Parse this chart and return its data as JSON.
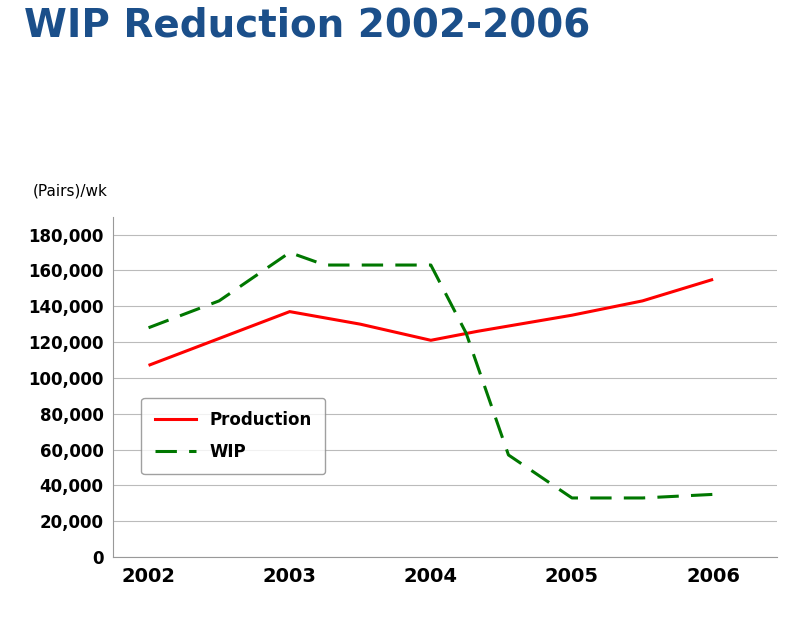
{
  "title": "WIP Reduction 2002-2006",
  "title_color": "#1B4F8A",
  "ylabel": "(Pairs)/wk",
  "production_x": [
    2002,
    2002.5,
    2003,
    2003.5,
    2004,
    2004.33,
    2005,
    2005.5,
    2006
  ],
  "production_y": [
    107000,
    122000,
    137000,
    130000,
    121000,
    126000,
    135000,
    143000,
    155000
  ],
  "wip_x": [
    2002,
    2002.5,
    2003,
    2003.25,
    2004,
    2004.25,
    2004.55,
    2005,
    2005.5,
    2006
  ],
  "wip_y": [
    128000,
    143000,
    170000,
    163000,
    163000,
    125000,
    57000,
    33000,
    33000,
    35000
  ],
  "production_color": "#FF0000",
  "wip_color": "#007700",
  "ylim": [
    0,
    190000
  ],
  "yticks": [
    0,
    20000,
    40000,
    60000,
    80000,
    100000,
    120000,
    140000,
    160000,
    180000
  ],
  "xlim": [
    2001.75,
    2006.45
  ],
  "xticks": [
    2002,
    2003,
    2004,
    2005,
    2006
  ],
  "background_color": "#FFFFFF",
  "grid_color": "#BBBBBB",
  "title_fontsize": 28,
  "ylabel_fontsize": 11,
  "tick_fontsize": 12,
  "legend_fontsize": 12
}
